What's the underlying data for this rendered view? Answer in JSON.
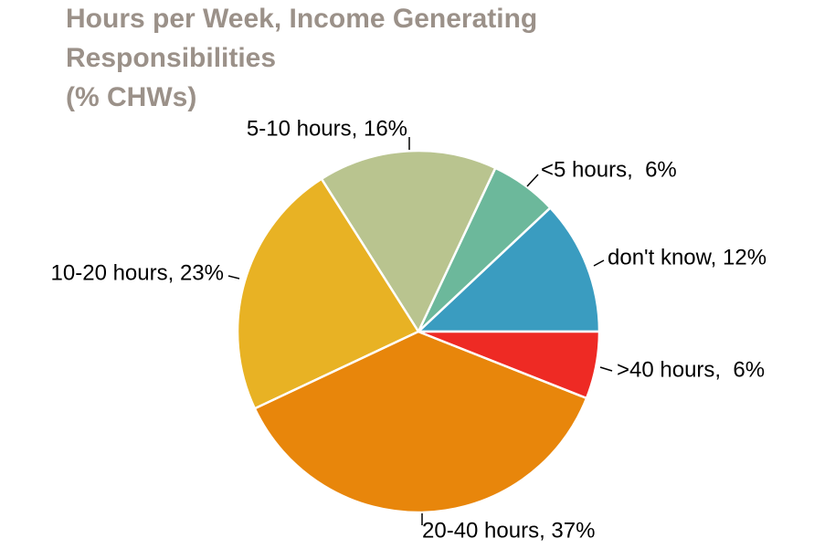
{
  "chart_data": {
    "type": "pie",
    "title": [
      "Hours per Week, Income Generating",
      "Responsibilities",
      "(% CHWs)"
    ],
    "labels": [
      "don't know, 12%",
      "<5 hours,  6%",
      "5-10 hours, 16%",
      "10-20 hours, 23%",
      "20-40 hours, 37%",
      ">40 hours,  6%"
    ],
    "values": [
      12,
      6,
      16,
      23,
      37,
      6
    ],
    "colors": [
      "#3a9cc0",
      "#6cb89b",
      "#b9c48f",
      "#e8b224",
      "#e8860b",
      "#ee2a24"
    ]
  }
}
